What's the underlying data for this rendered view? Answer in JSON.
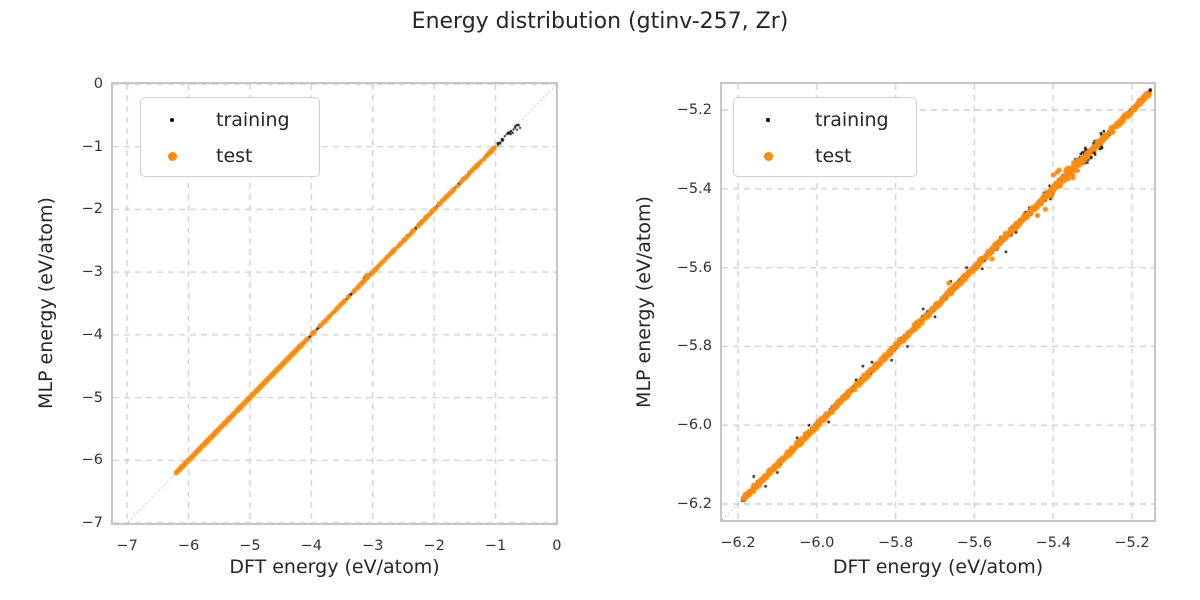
{
  "figure": {
    "title": "Energy distribution (gtinv-257, Zr)",
    "background": "#ffffff",
    "text_color": "#262626"
  },
  "colors": {
    "training": "#0d0d0d",
    "test": "#fb8c0e",
    "grid": "#cccccc",
    "spine": "#c6c6c6",
    "identity_line": "#999999"
  },
  "chart_data": [
    {
      "type": "scatter",
      "xlabel": "DFT energy (eV/atom)",
      "ylabel": "MLP energy (eV/atom)",
      "xlim": [
        -7.23,
        -0.015
      ],
      "ylim": [
        -7.0,
        0.0
      ],
      "grid": true,
      "grid_style": "dashed",
      "identity_line": true,
      "x_ticks": {
        "values": [
          -7,
          -6,
          -5,
          -4,
          -3,
          -2,
          -1,
          0
        ],
        "labels": [
          "−7",
          "−6",
          "−5",
          "−4",
          "−3",
          "−2",
          "−1",
          "0"
        ]
      },
      "y_ticks": {
        "values": [
          0,
          -1,
          -2,
          -3,
          -4,
          -5,
          -6,
          -7
        ],
        "labels": [
          "0",
          "−1",
          "−2",
          "−3",
          "−4",
          "−5",
          "−6",
          "−7"
        ]
      },
      "legend": {
        "position": "upper-left",
        "items": [
          {
            "label": "training",
            "series": "training"
          },
          {
            "label": "test",
            "series": "test"
          }
        ]
      },
      "segments_format": "[x_start, x_end, n_points, y_jitter]; points lie on y=x plus jitter",
      "series": [
        {
          "name": "training",
          "key": "training",
          "size": 1.8,
          "seed": 7,
          "segments": [
            [
              -6.2,
              -1.0,
              1000,
              0.01
            ],
            [
              -3.6,
              -2.9,
              80,
              0.02
            ],
            [
              -2.1,
              -1.2,
              70,
              0.016
            ],
            [
              -1.0,
              -0.62,
              26,
              0.03
            ]
          ],
          "outliers": [
            [
              -0.65,
              -0.73
            ],
            [
              -0.68,
              -0.7
            ],
            [
              -0.72,
              -0.78
            ],
            [
              -0.62,
              -0.66
            ],
            [
              -0.75,
              -0.8
            ],
            [
              -0.85,
              -0.83
            ],
            [
              -0.92,
              -0.95
            ],
            [
              -0.6,
              -0.7
            ],
            [
              -3.13,
              -3.07
            ],
            [
              -3.15,
              -3.1
            ]
          ]
        },
        {
          "name": "test",
          "key": "test",
          "size": 4.6,
          "seed": 11,
          "segments": [
            [
              -6.2,
              -4.15,
              650,
              0.007
            ],
            [
              -4.15,
              -2.55,
              90,
              0.008
            ],
            [
              -2.55,
              -1.02,
              100,
              0.01
            ]
          ],
          "outliers": [
            [
              -3.1,
              -3.05
            ]
          ]
        }
      ]
    },
    {
      "type": "scatter",
      "xlabel": "DFT energy (eV/atom)",
      "ylabel": "MLP energy (eV/atom)",
      "xlim": [
        -6.2406,
        -5.1442
      ],
      "ylim": [
        -6.2406,
        -5.134
      ],
      "grid": true,
      "grid_style": "dashed",
      "identity_line": true,
      "x_ticks": {
        "values": [
          -6.2,
          -6.0,
          -5.8,
          -5.6,
          -5.4,
          -5.2
        ],
        "labels": [
          "−6.2",
          "−6.0",
          "−5.8",
          "−5.6",
          "−5.4",
          "−5.2"
        ]
      },
      "y_ticks": {
        "values": [
          -5.2,
          -5.4,
          -5.6,
          -5.8,
          -6.0,
          -6.2
        ],
        "labels": [
          "−5.2",
          "−5.4",
          "−5.6",
          "−5.8",
          "−6.0",
          "−6.2"
        ]
      },
      "legend": {
        "position": "upper-left",
        "items": [
          {
            "label": "training",
            "series": "training"
          },
          {
            "label": "test",
            "series": "test"
          }
        ]
      },
      "segments_format": "[x_start, x_end, n_points, y_jitter]; points lie on y=x plus jitter",
      "series": [
        {
          "name": "training",
          "key": "training",
          "size": 2.4,
          "seed": 13,
          "segments": [
            [
              -6.19,
              -5.15,
              1500,
              0.006
            ],
            [
              -5.43,
              -5.27,
              100,
              0.018
            ],
            [
              -5.55,
              -5.45,
              40,
              0.012
            ]
          ],
          "outliers": [
            [
              -6.16,
              -6.13
            ],
            [
              -6.1,
              -6.12
            ],
            [
              -6.13,
              -6.155
            ],
            [
              -5.62,
              -5.6
            ],
            [
              -5.77,
              -5.8
            ],
            [
              -5.9,
              -5.885
            ],
            [
              -6.05,
              -6.032
            ],
            [
              -5.52,
              -5.56
            ],
            [
              -5.58,
              -5.603
            ],
            [
              -5.66,
              -5.635
            ],
            [
              -5.7,
              -5.725
            ],
            [
              -5.81,
              -5.835
            ],
            [
              -5.73,
              -5.705
            ],
            [
              -5.86,
              -5.84
            ],
            [
              -5.97,
              -5.992
            ],
            [
              -6.02,
              -6.0
            ],
            [
              -5.883,
              -5.85
            ]
          ]
        },
        {
          "name": "test",
          "key": "test",
          "size": 5.0,
          "seed": 17,
          "segments": [
            [
              -6.19,
              -5.155,
              850,
              0.006
            ],
            [
              -5.41,
              -5.3,
              35,
              0.014
            ]
          ],
          "outliers": [
            [
              -5.4,
              -5.365
            ],
            [
              -5.39,
              -5.358
            ],
            [
              -5.385,
              -5.352
            ],
            [
              -5.42,
              -5.452
            ],
            [
              -5.35,
              -5.372
            ],
            [
              -5.44,
              -5.468
            ],
            [
              -5.665,
              -5.64
            ],
            [
              -5.555,
              -5.578
            ]
          ]
        }
      ]
    }
  ]
}
